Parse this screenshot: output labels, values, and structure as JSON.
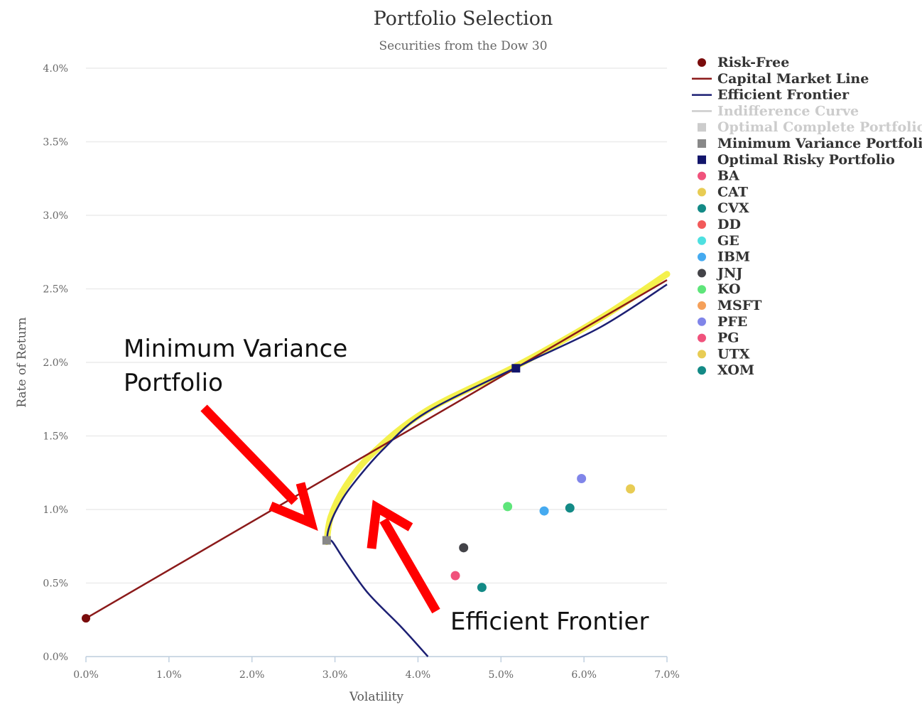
{
  "chart_data": {
    "type": "scatter",
    "title": "Portfolio Selection",
    "subtitle": "Securities from the Dow 30",
    "xlabel": "Volatility",
    "ylabel": "Rate of Return",
    "xlim": [
      0,
      7
    ],
    "ylim": [
      0,
      4
    ],
    "x_ticks": [
      "0.0%",
      "1.0%",
      "2.0%",
      "3.0%",
      "4.0%",
      "5.0%",
      "6.0%",
      "7.0%"
    ],
    "y_ticks": [
      "0.0%",
      "0.5%",
      "1.0%",
      "1.5%",
      "2.0%",
      "2.5%",
      "3.0%",
      "3.5%",
      "4.0%"
    ],
    "grid": true,
    "legend_position": "right",
    "legend": [
      {
        "name": "Risk-Free",
        "symbol": "circle",
        "color": "#7a0c0c",
        "visible": true
      },
      {
        "name": "Capital Market Line",
        "symbol": "line",
        "color": "#8b1a1a",
        "visible": true
      },
      {
        "name": "Efficient Frontier",
        "symbol": "line",
        "color": "#1c1f73",
        "visible": true
      },
      {
        "name": "Indifference Curve",
        "symbol": "line",
        "color": "#cccccc",
        "visible": false
      },
      {
        "name": "Optimal Complete Portfolio",
        "symbol": "square",
        "color": "#cccccc",
        "visible": false
      },
      {
        "name": "Minimum Variance Portfolio",
        "symbol": "square",
        "color": "#888888",
        "visible": true
      },
      {
        "name": "Optimal Risky Portfolio",
        "symbol": "square",
        "color": "#12156b",
        "visible": true
      },
      {
        "name": "BA",
        "symbol": "circle",
        "color": "#f0527c",
        "visible": true
      },
      {
        "name": "CAT",
        "symbol": "circle",
        "color": "#e8cc54",
        "visible": true
      },
      {
        "name": "CVX",
        "symbol": "circle",
        "color": "#138a86",
        "visible": true
      },
      {
        "name": "DD",
        "symbol": "circle",
        "color": "#f25a5a",
        "visible": true
      },
      {
        "name": "GE",
        "symbol": "circle",
        "color": "#4ee0e0",
        "visible": true
      },
      {
        "name": "IBM",
        "symbol": "circle",
        "color": "#45aaf0",
        "visible": true
      },
      {
        "name": "JNJ",
        "symbol": "circle",
        "color": "#434348",
        "visible": true
      },
      {
        "name": "KO",
        "symbol": "circle",
        "color": "#5ee57a",
        "visible": true
      },
      {
        "name": "MSFT",
        "symbol": "circle",
        "color": "#f5a05a",
        "visible": true
      },
      {
        "name": "PFE",
        "symbol": "circle",
        "color": "#8085e9",
        "visible": true
      },
      {
        "name": "PG",
        "symbol": "circle",
        "color": "#f0527c",
        "visible": true
      },
      {
        "name": "UTX",
        "symbol": "circle",
        "color": "#e8cc54",
        "visible": true
      },
      {
        "name": "XOM",
        "symbol": "circle",
        "color": "#138a86",
        "visible": true
      }
    ],
    "risk_free": {
      "x": 0.0,
      "y": 0.26,
      "color": "#7a0c0c"
    },
    "capital_market_line": {
      "color": "#8b1a1a",
      "points": [
        [
          0.0,
          0.26
        ],
        [
          7.0,
          2.56
        ]
      ]
    },
    "efficient_frontier": {
      "color": "#1c1f73",
      "points": [
        [
          4.12,
          0.0
        ],
        [
          3.8,
          0.2
        ],
        [
          3.4,
          0.43
        ],
        [
          3.12,
          0.65
        ],
        [
          2.97,
          0.78
        ],
        [
          2.91,
          0.8
        ],
        [
          2.93,
          0.88
        ],
        [
          3.02,
          1.0
        ],
        [
          3.2,
          1.16
        ],
        [
          3.6,
          1.42
        ],
        [
          4.1,
          1.66
        ],
        [
          5.2,
          1.97
        ],
        [
          6.2,
          2.24
        ],
        [
          7.0,
          2.53
        ]
      ]
    },
    "highlight_band": {
      "color": "#f2ee2e",
      "points": [
        [
          2.9,
          0.78
        ],
        [
          2.95,
          0.95
        ],
        [
          3.12,
          1.15
        ],
        [
          3.45,
          1.38
        ],
        [
          4.1,
          1.67
        ],
        [
          5.2,
          1.98
        ],
        [
          6.2,
          2.3
        ],
        [
          7.0,
          2.6
        ]
      ]
    },
    "minimum_variance_portfolio": {
      "x": 2.9,
      "y": 0.79,
      "color": "#888888"
    },
    "optimal_risky_portfolio": {
      "x": 5.18,
      "y": 1.96,
      "color": "#12156b"
    },
    "securities": [
      {
        "name": "PG",
        "x": 4.45,
        "y": 0.55,
        "color": "#f0527c"
      },
      {
        "name": "JNJ",
        "x": 4.55,
        "y": 0.74,
        "color": "#434348"
      },
      {
        "name": "XOM",
        "x": 4.77,
        "y": 0.47,
        "color": "#138a86"
      },
      {
        "name": "KO",
        "x": 5.08,
        "y": 1.02,
        "color": "#5ee57a"
      },
      {
        "name": "IBM",
        "x": 5.52,
        "y": 0.99,
        "color": "#45aaf0"
      },
      {
        "name": "CVX",
        "x": 5.83,
        "y": 1.01,
        "color": "#138a86"
      },
      {
        "name": "PFE",
        "x": 5.97,
        "y": 1.21,
        "color": "#8085e9"
      },
      {
        "name": "CAT",
        "x": 6.56,
        "y": 1.14,
        "color": "#e8cc54"
      }
    ],
    "annotations": [
      {
        "text_lines": [
          "Minimum Variance",
          "Portfolio"
        ],
        "arrow_color": "#ff0000"
      },
      {
        "text_lines": [
          "Efficient Frontier"
        ],
        "arrow_color": "#ff0000"
      }
    ]
  }
}
